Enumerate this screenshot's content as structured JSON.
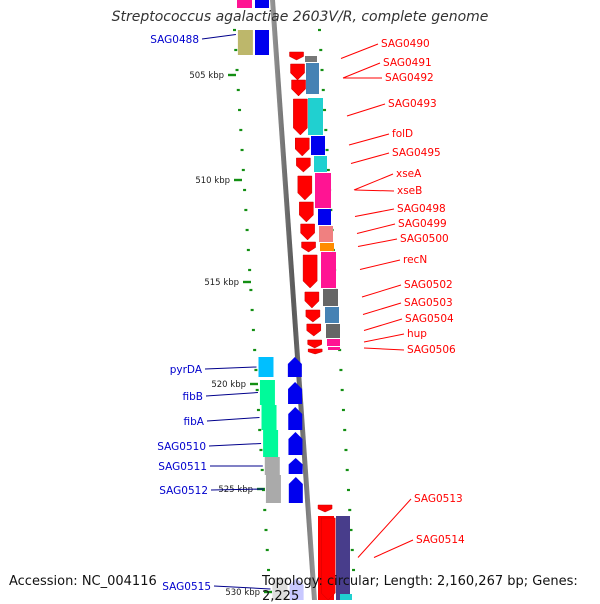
{
  "title": "Streptococcus agalactiae 2603V/R, complete genome",
  "footer": {
    "accession": "Accession: NC_004116",
    "summary": "Topology: circular; Length: 2,160,267 bp; Genes: 2,225"
  },
  "ruler": [
    "505 kbp",
    "510 kbp",
    "515 kbp",
    "520 kbp",
    "525 kbp",
    "530 kbp"
  ],
  "genes_reverse": [
    {
      "label": "SAG0490",
      "color": "#777777"
    },
    {
      "label": "SAG0491",
      "color": "#4682b4"
    },
    {
      "label": "SAG0492",
      "color": "#4682b4"
    },
    {
      "label": "SAG0493",
      "color": "#20d0d0"
    },
    {
      "label": "folD",
      "color": "#0000ee"
    },
    {
      "label": "SAG0495",
      "color": "#20d0d0"
    },
    {
      "label": "xseA",
      "color": "#ff1493"
    },
    {
      "label": "xseB",
      "color": "#ff1493"
    },
    {
      "label": "SAG0498",
      "color": "#0000ee"
    },
    {
      "label": "SAG0499",
      "color": "#f08080"
    },
    {
      "label": "SAG0500",
      "color": "#ff8c00"
    },
    {
      "label": "recN",
      "color": "#ff1493"
    },
    {
      "label": "SAG0502",
      "color": "#666666"
    },
    {
      "label": "SAG0503",
      "color": "#4682b4"
    },
    {
      "label": "SAG0504",
      "color": "#666666"
    },
    {
      "label": "hup",
      "color": "#ff1493"
    },
    {
      "label": "SAG0506",
      "color": "#ff1493"
    },
    {
      "label": "SAG0513",
      "color": "#ff0000"
    },
    {
      "label": "SAG0514",
      "color": "#483d8b"
    }
  ],
  "genes_forward": [
    {
      "label": "SAG0488",
      "color": "#bdb76b"
    },
    {
      "label": "pyrDA",
      "color": "#00bfff"
    },
    {
      "label": "fibB",
      "color": "#00fa9a"
    },
    {
      "label": "fibA",
      "color": "#00fa9a"
    },
    {
      "label": "SAG0510",
      "color": "#00fa9a"
    },
    {
      "label": "SAG0511",
      "color": "#aaaaaa"
    },
    {
      "label": "SAG0512",
      "color": "#aaaaaa"
    },
    {
      "label": "SAG0515",
      "color": "#dddddd"
    }
  ]
}
